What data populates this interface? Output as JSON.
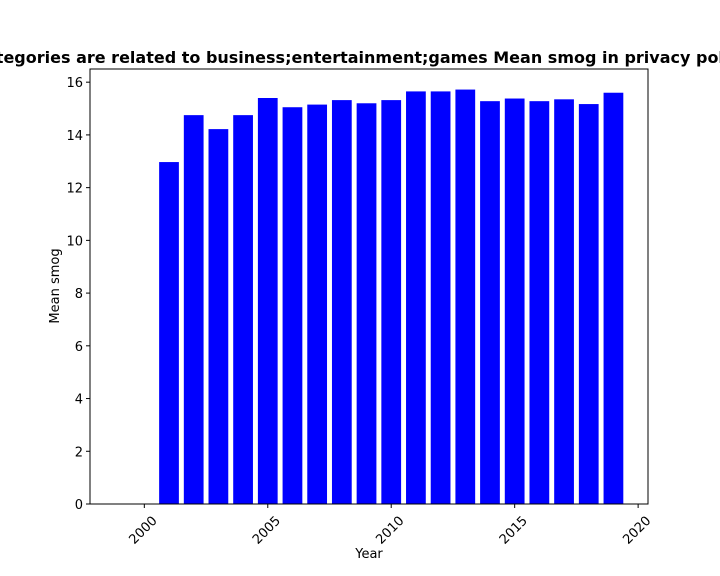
{
  "chart_data": {
    "type": "bar",
    "title": "Categories are related to business;entertainment;games Mean smog in privacy policies",
    "xlabel": "Year",
    "ylabel": "Mean smog",
    "x": [
      2001,
      2002,
      2003,
      2004,
      2005,
      2006,
      2007,
      2008,
      2009,
      2010,
      2011,
      2012,
      2013,
      2014,
      2015,
      2016,
      2017,
      2018,
      2019
    ],
    "values": [
      12.97,
      14.75,
      14.22,
      14.75,
      15.4,
      15.05,
      15.15,
      15.32,
      15.2,
      15.32,
      15.65,
      15.65,
      15.72,
      15.28,
      15.38,
      15.28,
      15.35,
      15.17,
      15.6
    ],
    "xlim": [
      1997.8,
      2020.4
    ],
    "ylim": [
      0,
      16.5
    ],
    "xticks": [
      2000,
      2005,
      2010,
      2015,
      2020
    ],
    "xtick_labels": [
      "2000",
      "2005",
      "2010",
      "2015",
      "2020"
    ],
    "yticks": [
      0,
      2,
      4,
      6,
      8,
      10,
      12,
      14,
      16
    ],
    "ytick_labels": [
      "0",
      "2",
      "4",
      "6",
      "8",
      "10",
      "12",
      "14",
      "16"
    ],
    "bar_color": "#0000ff",
    "grid": false,
    "legend": "none"
  }
}
